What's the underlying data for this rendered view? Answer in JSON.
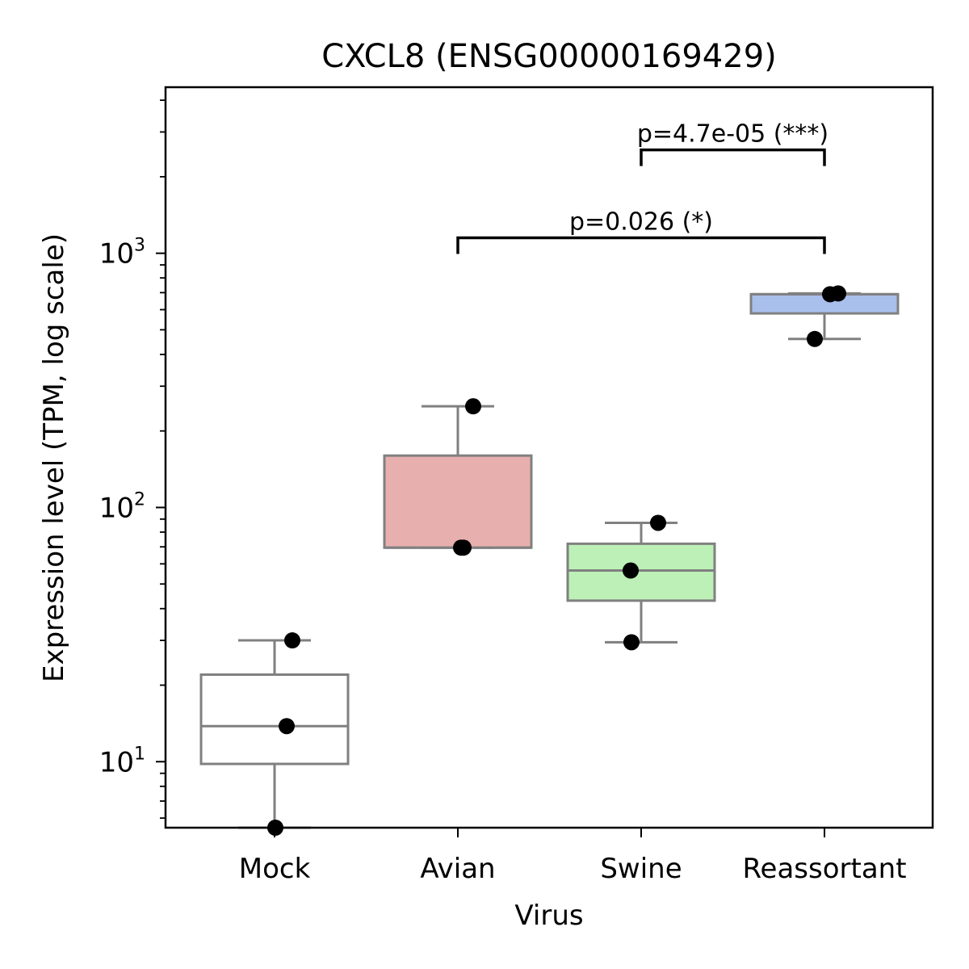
{
  "chart_data": {
    "type": "box",
    "title": "CXCL8 (ENSG00000169429)",
    "xlabel": "Virus",
    "ylabel": "Expression level (TPM, log scale)",
    "yscale": "log",
    "ylim": [
      5.5,
      4500
    ],
    "yticks": [
      {
        "value": 10,
        "base": "10",
        "exp": "1"
      },
      {
        "value": 100,
        "base": "10",
        "exp": "2"
      },
      {
        "value": 1000,
        "base": "10",
        "exp": "3"
      }
    ],
    "categories": [
      "Mock",
      "Avian",
      "Swine",
      "Reassortant"
    ],
    "boxes": [
      {
        "category": "Mock",
        "color": "#ffffff",
        "whisker_low": 5.5,
        "q1": 9.8,
        "median": 13.8,
        "q3": 22,
        "whisker_high": 30,
        "points": [
          5.5,
          13.8,
          30
        ]
      },
      {
        "category": "Avian",
        "color": "#e8afaf",
        "whisker_low": 69.5,
        "q1": 69.5,
        "median": 69.5,
        "q3": 160,
        "whisker_high": 250,
        "points": [
          69.5,
          69.5,
          250
        ]
      },
      {
        "category": "Swine",
        "color": "#bdf0b7",
        "whisker_low": 29.5,
        "q1": 43,
        "median": 56.5,
        "q3": 72,
        "whisker_high": 87,
        "points": [
          29.5,
          56.5,
          87
        ]
      },
      {
        "category": "Reassortant",
        "color": "#a9bfec",
        "whisker_low": 460,
        "q1": 580,
        "median": 690,
        "q3": 690,
        "whisker_high": 695,
        "points": [
          460,
          690,
          695
        ]
      }
    ],
    "annotations": [
      {
        "from": "Avian",
        "to": "Reassortant",
        "y": 1150,
        "label": "p=0.026 (*)"
      },
      {
        "from": "Swine",
        "to": "Reassortant",
        "y": 2550,
        "label": "p=4.7e-05 (***)"
      }
    ],
    "grid": false,
    "legend": "none"
  }
}
